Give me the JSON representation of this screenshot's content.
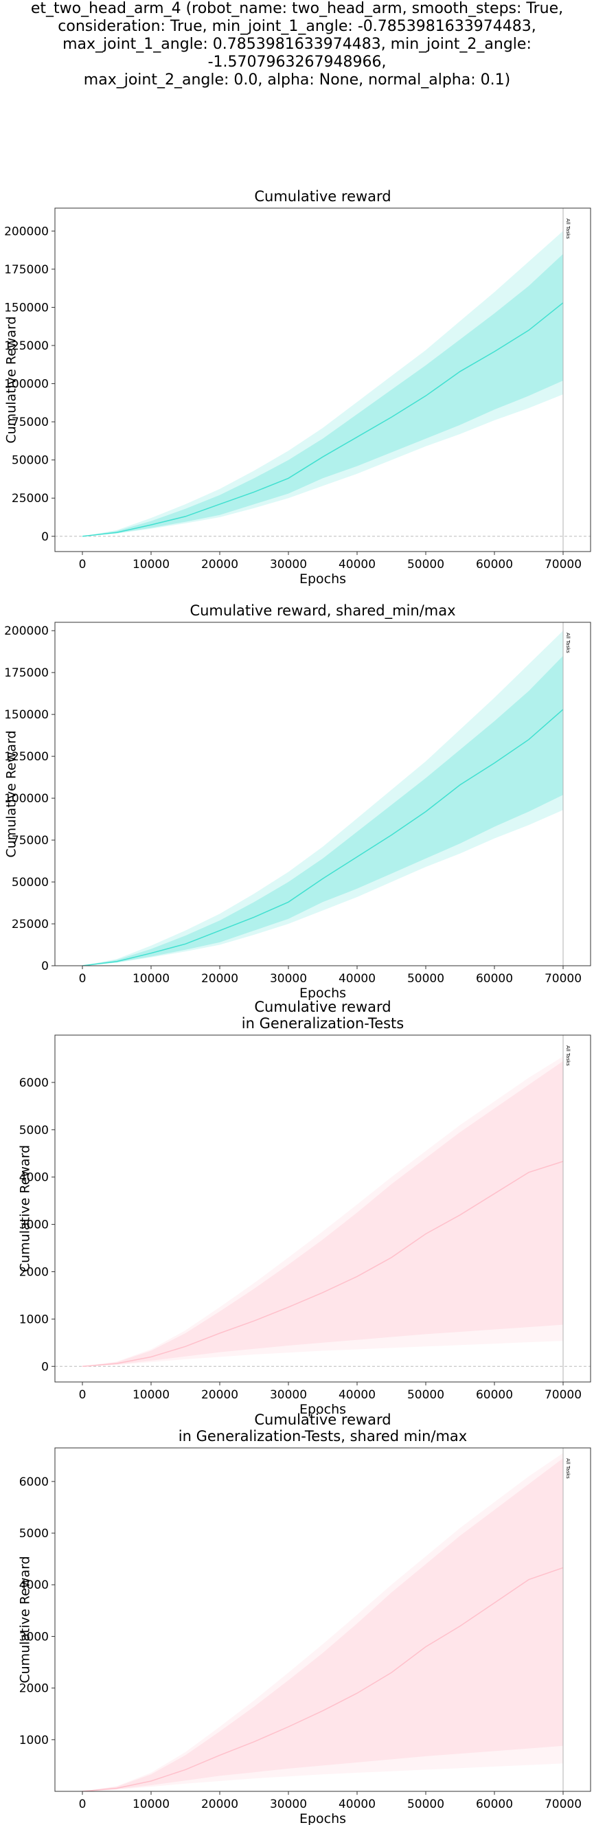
{
  "figure": {
    "title": "et_two_head_arm_4 (robot_name: two_head_arm, smooth_steps: True,\nconsideration: True, min_joint_1_angle: -0.7853981633974483,\nmax_joint_1_angle: 0.7853981633974483, min_joint_2_angle: -1.5707963267948966,\nmax_joint_2_angle: 0.0, alpha: None, normal_alpha: 0.1)"
  },
  "chart_data": [
    {
      "type": "area",
      "title": "Cumulative reward",
      "xlabel": "Epochs",
      "ylabel": "Cumulative Reward",
      "xlim": [
        -4000,
        74000
      ],
      "ylim": [
        -10000,
        215000
      ],
      "x_ticks": [
        0,
        10000,
        20000,
        30000,
        40000,
        50000,
        60000,
        70000
      ],
      "y_ticks": [
        0,
        25000,
        50000,
        75000,
        100000,
        125000,
        150000,
        175000,
        200000
      ],
      "color": "#40e0d0",
      "zero_line": true,
      "marker": {
        "x": 70000,
        "label": "All Tasks"
      },
      "x": [
        0,
        5000,
        10000,
        15000,
        20000,
        25000,
        30000,
        35000,
        40000,
        45000,
        50000,
        55000,
        60000,
        65000,
        70000
      ],
      "mean": [
        0,
        2500,
        7500,
        13000,
        21000,
        29000,
        38000,
        52000,
        65000,
        78000,
        92000,
        108000,
        121000,
        135000,
        153000
      ],
      "inner_low": [
        0,
        2000,
        5500,
        9500,
        14000,
        21000,
        28000,
        38000,
        46000,
        55000,
        64000,
        73000,
        83000,
        92000,
        102000
      ],
      "inner_high": [
        0,
        3500,
        10000,
        18000,
        27000,
        38000,
        50000,
        64000,
        80000,
        96000,
        112000,
        129000,
        146000,
        164000,
        185000
      ],
      "outer_low": [
        0,
        1800,
        5000,
        8500,
        12500,
        18500,
        25000,
        33000,
        41000,
        50000,
        59000,
        67000,
        76000,
        84000,
        93000
      ],
      "outer_high": [
        0,
        4000,
        12000,
        21000,
        31000,
        43000,
        56000,
        71000,
        88000,
        105000,
        122000,
        141000,
        160000,
        180000,
        200000
      ]
    },
    {
      "type": "area",
      "title": "Cumulative reward, shared_min/max",
      "xlabel": "Epochs",
      "ylabel": "Cumulative Reward",
      "xlim": [
        -4000,
        74000
      ],
      "ylim": [
        0,
        205000
      ],
      "x_ticks": [
        0,
        10000,
        20000,
        30000,
        40000,
        50000,
        60000,
        70000
      ],
      "y_ticks": [
        0,
        25000,
        50000,
        75000,
        100000,
        125000,
        150000,
        175000,
        200000
      ],
      "color": "#40e0d0",
      "zero_line": false,
      "marker": {
        "x": 70000,
        "label": "All Tasks"
      },
      "x": [
        0,
        5000,
        10000,
        15000,
        20000,
        25000,
        30000,
        35000,
        40000,
        45000,
        50000,
        55000,
        60000,
        65000,
        70000
      ],
      "mean": [
        0,
        2500,
        7500,
        13000,
        21000,
        29000,
        38000,
        52000,
        65000,
        78000,
        92000,
        108000,
        121000,
        135000,
        153000
      ],
      "inner_low": [
        0,
        2000,
        5500,
        9500,
        14000,
        21000,
        28000,
        38000,
        46000,
        55000,
        64000,
        73000,
        83000,
        92000,
        102000
      ],
      "inner_high": [
        0,
        3500,
        10000,
        18000,
        27000,
        38000,
        50000,
        64000,
        80000,
        96000,
        112000,
        129000,
        146000,
        164000,
        185000
      ],
      "outer_low": [
        0,
        1800,
        5000,
        8500,
        12500,
        18500,
        25000,
        33000,
        41000,
        50000,
        59000,
        67000,
        76000,
        84000,
        93000
      ],
      "outer_high": [
        0,
        4000,
        12000,
        21000,
        31000,
        43000,
        56000,
        71000,
        88000,
        105000,
        122000,
        141000,
        160000,
        180000,
        200000
      ]
    },
    {
      "type": "area",
      "title": "Cumulative reward\nin Generalization-Tests",
      "xlabel": "Epochs",
      "ylabel": "Cumulative Reward",
      "xlim": [
        -4000,
        74000
      ],
      "ylim": [
        -330,
        7000
      ],
      "x_ticks": [
        0,
        10000,
        20000,
        30000,
        40000,
        50000,
        60000,
        70000
      ],
      "y_ticks": [
        0,
        1000,
        2000,
        3000,
        4000,
        5000,
        6000
      ],
      "color": "#ffc0cb",
      "zero_line": true,
      "marker": {
        "x": 70000,
        "label": "All Tasks"
      },
      "x": [
        0,
        5000,
        10000,
        15000,
        20000,
        25000,
        30000,
        35000,
        40000,
        45000,
        50000,
        55000,
        60000,
        65000,
        70000
      ],
      "mean": [
        0,
        60,
        200,
        420,
        700,
        960,
        1250,
        1560,
        1900,
        2300,
        2800,
        3200,
        3650,
        4100,
        4330
      ],
      "inner_low": [
        0,
        40,
        120,
        210,
        300,
        370,
        440,
        500,
        560,
        620,
        680,
        730,
        780,
        830,
        880
      ],
      "inner_high": [
        0,
        90,
        330,
        700,
        1160,
        1640,
        2150,
        2680,
        3250,
        3850,
        4400,
        4950,
        5450,
        5950,
        6450
      ],
      "outer_low": [
        0,
        30,
        90,
        150,
        200,
        250,
        290,
        330,
        360,
        390,
        420,
        450,
        480,
        510,
        540
      ],
      "outer_high": [
        0,
        100,
        360,
        760,
        1250,
        1760,
        2300,
        2850,
        3420,
        4000,
        4550,
        5100,
        5600,
        6100,
        6550
      ]
    },
    {
      "type": "area",
      "title": "Cumulative reward\nin Generalization-Tests, shared min/max",
      "xlabel": "Epochs",
      "ylabel": "Cumulative Reward",
      "xlim": [
        -4000,
        74000
      ],
      "ylim": [
        0,
        6650
      ],
      "x_ticks": [
        0,
        10000,
        20000,
        30000,
        40000,
        50000,
        60000,
        70000
      ],
      "y_ticks": [
        1000,
        2000,
        3000,
        4000,
        5000,
        6000
      ],
      "color": "#ffc0cb",
      "zero_line": false,
      "marker": {
        "x": 70000,
        "label": "All Tasks"
      },
      "x": [
        0,
        5000,
        10000,
        15000,
        20000,
        25000,
        30000,
        35000,
        40000,
        45000,
        50000,
        55000,
        60000,
        65000,
        70000
      ],
      "mean": [
        0,
        60,
        200,
        420,
        700,
        960,
        1250,
        1560,
        1900,
        2300,
        2800,
        3200,
        3650,
        4100,
        4330
      ],
      "inner_low": [
        0,
        40,
        120,
        210,
        300,
        370,
        440,
        500,
        560,
        620,
        680,
        730,
        780,
        830,
        880
      ],
      "inner_high": [
        0,
        90,
        330,
        700,
        1160,
        1640,
        2150,
        2680,
        3250,
        3850,
        4400,
        4950,
        5450,
        5950,
        6450
      ],
      "outer_low": [
        0,
        30,
        90,
        150,
        200,
        250,
        290,
        330,
        360,
        390,
        420,
        450,
        480,
        510,
        540
      ],
      "outer_high": [
        0,
        100,
        360,
        760,
        1250,
        1760,
        2300,
        2850,
        3420,
        4000,
        4550,
        5100,
        5600,
        6100,
        6550
      ]
    }
  ]
}
